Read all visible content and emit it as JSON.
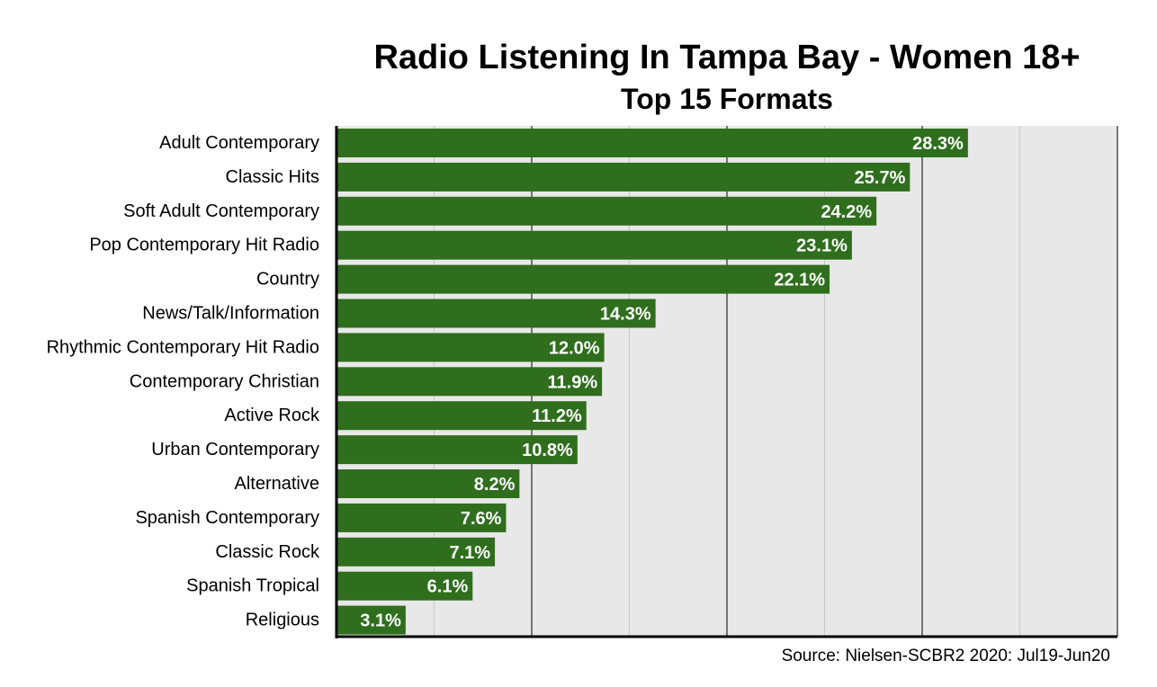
{
  "chart_data": {
    "type": "bar",
    "orientation": "horizontal",
    "title": "Radio Listening In Tampa Bay - Women 18+",
    "subtitle": "Top 15 Formats",
    "source": "Source: Nielsen-SCBR2 2020: Jul19-Jun20",
    "categories": [
      "Adult Contemporary",
      "Classic Hits",
      "Soft Adult Contemporary",
      "Pop Contemporary Hit Radio",
      "Country",
      "News/Talk/Information",
      "Rhythmic Contemporary Hit Radio",
      "Contemporary Christian",
      "Active Rock",
      "Urban Contemporary",
      "Alternative",
      "Spanish Contemporary",
      "Classic Rock",
      "Spanish Tropical",
      "Religious"
    ],
    "values": [
      28.3,
      25.7,
      24.2,
      23.1,
      22.1,
      14.3,
      12.0,
      11.9,
      11.2,
      10.8,
      8.2,
      7.6,
      7.1,
      6.1,
      3.1
    ],
    "value_labels": [
      "28.3%",
      "25.7%",
      "24.2%",
      "23.1%",
      "22.1%",
      "14.3%",
      "12.0%",
      "11.9%",
      "11.2%",
      "10.8%",
      "8.2%",
      "7.6%",
      "7.1%",
      "6.1%",
      "3.1%"
    ],
    "xlim": [
      0,
      35
    ],
    "grid_step": 4.375,
    "grid": true,
    "legend": "none",
    "colors": {
      "bar": "#2f6e1d",
      "plot_background": "#e8e8e8",
      "gridline": "#000000",
      "gridline_light": "#c8c8c8",
      "bar_label": "#ffffff"
    }
  }
}
